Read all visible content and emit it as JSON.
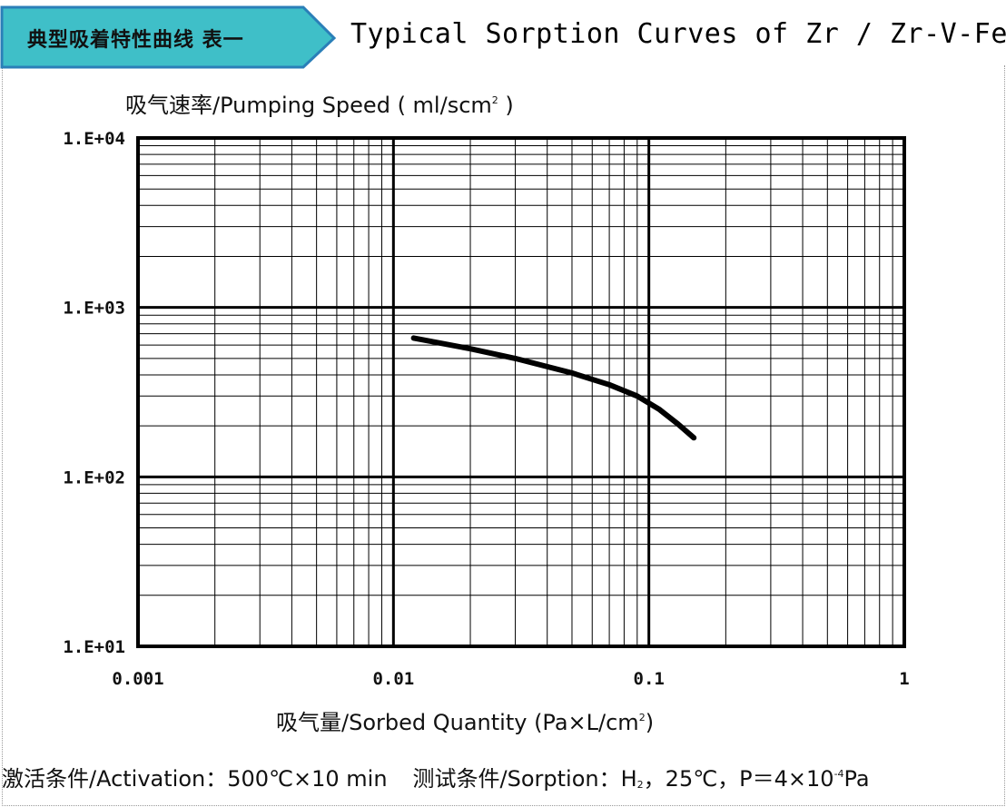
{
  "header": {
    "banner_text": "典型吸着特性曲线 表一",
    "title": "Typical Sorption Curves of  Zr / Zr-V-Fe",
    "banner_color": "#3fbfc8",
    "banner_border": "#2a7fb8"
  },
  "axis": {
    "ylabel_main": "吸气速率/Pumping Speed ( ml/scm",
    "ylabel_sup": "2",
    "ylabel_end": " )",
    "xlabel_main": "吸气量/Sorbed Quantity (Pa×L/cm",
    "xlabel_sup": "2",
    "xlabel_end": ")"
  },
  "footer": {
    "activation": "激活条件/Activation：500℃×10 min",
    "sorption_prefix": "测试条件/Sorption：H",
    "sorption_sub": "2",
    "sorption_mid": "，25℃，P＝4×10",
    "sorption_sup": "-4",
    "sorption_end": "Pa"
  },
  "chart_data": {
    "type": "line",
    "xscale": "log",
    "yscale": "log",
    "xlim": [
      0.001,
      1
    ],
    "ylim": [
      10,
      10000
    ],
    "x_tick_labels": [
      "0.001",
      "0.01",
      "0.1",
      "1"
    ],
    "y_tick_labels": [
      "1.E+01",
      "1.E+02",
      "1.E+03",
      "1.E+04"
    ],
    "grid": true,
    "series": [
      {
        "x": [
          0.012,
          0.02,
          0.03,
          0.05,
          0.07,
          0.09,
          0.11,
          0.13,
          0.15
        ],
        "y": [
          660,
          570,
          500,
          410,
          350,
          300,
          250,
          205,
          170
        ]
      }
    ],
    "line_color": "#000000"
  }
}
